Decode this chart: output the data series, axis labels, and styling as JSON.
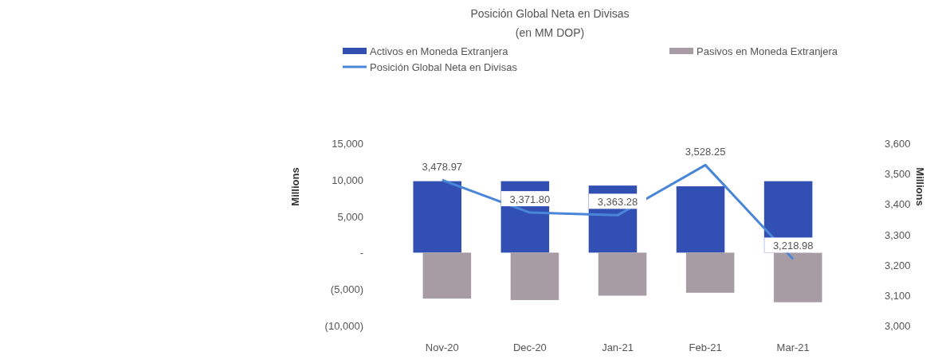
{
  "chart_data": {
    "type": "bar",
    "title": "Posición Global Neta en Divisas",
    "subtitle": "(en MM DOP)",
    "categories": [
      "Nov-20",
      "Dec-20",
      "Jan-21",
      "Feb-21",
      "Mar-21"
    ],
    "series": [
      {
        "name": "Activos en Moneda Extranjera",
        "color": "#3250b4",
        "values": [
          9800,
          9800,
          9200,
          9100,
          9800
        ]
      },
      {
        "name": "Pasivos en Moneda Extranjera",
        "color": "#a89ca4",
        "values": [
          -6300,
          -6500,
          -5900,
          -5500,
          -6800
        ]
      },
      {
        "name": "Posición Global Neta en Divisas",
        "type": "line",
        "axis": "y2",
        "color": "#4a86d8",
        "values": [
          3478.97,
          3371.8,
          3363.28,
          3528.25,
          3218.98
        ],
        "value_labels": [
          "3,478.97",
          "3,371.80",
          "3,363.28",
          "3,528.25",
          "3,218.98"
        ]
      }
    ],
    "ylim": [
      -10000,
      15000
    ],
    "yticks": [
      {
        "value": -10000,
        "label": "(10,000)"
      },
      {
        "value": -5000,
        "label": "(5,000)"
      },
      {
        "value": 0,
        "label": "-"
      },
      {
        "value": 5000,
        "label": "5,000"
      },
      {
        "value": 10000,
        "label": "10,000"
      },
      {
        "value": 15000,
        "label": "15,000"
      }
    ],
    "y2lim": [
      3000,
      3600
    ],
    "y2ticks": [
      {
        "value": 3000,
        "label": "3,000"
      },
      {
        "value": 3100,
        "label": "3,100"
      },
      {
        "value": 3200,
        "label": "3,200"
      },
      {
        "value": 3300,
        "label": "3,300"
      },
      {
        "value": 3400,
        "label": "3,400"
      },
      {
        "value": 3500,
        "label": "3,500"
      },
      {
        "value": 3600,
        "label": "3,600"
      }
    ],
    "ylabel": "Millions",
    "y2label": "Millions",
    "legend": "top",
    "grid": false
  }
}
